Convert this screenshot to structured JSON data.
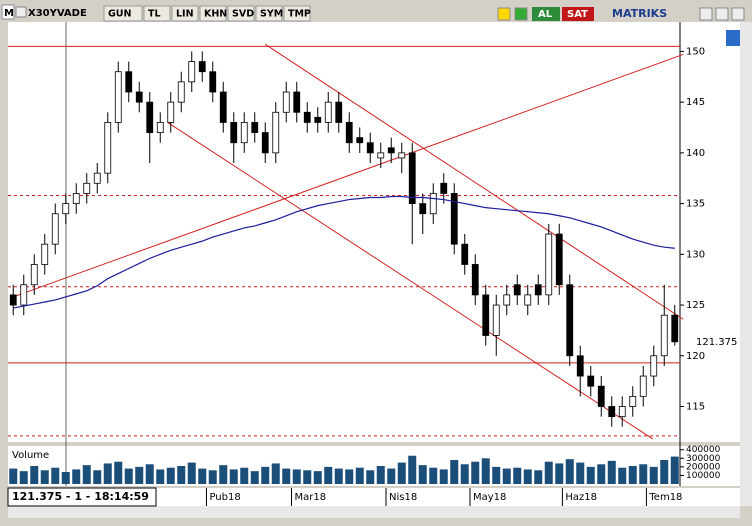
{
  "toolbar": {
    "symbol": "X30YVADE",
    "buttons": [
      "GUN",
      "TL",
      "LIN",
      "KHN",
      "SVD",
      "SYM",
      "TMP"
    ],
    "buy": "AL",
    "sell": "SAT",
    "brand": "MATRIKS",
    "logo": "M"
  },
  "status": "121.375 - 1 - 18:14:59",
  "chart_data": {
    "type": "candlestick",
    "categories": [
      null,
      null,
      null,
      null,
      null,
      null,
      null,
      null,
      null,
      null,
      null,
      null,
      null,
      null,
      null,
      null,
      null,
      null,
      null,
      null,
      null,
      null,
      null,
      null,
      null,
      null,
      null,
      null,
      null,
      null,
      null,
      null,
      null,
      null,
      null,
      null,
      null,
      null,
      null,
      null,
      null,
      null,
      null,
      null,
      null,
      null,
      null,
      null,
      null,
      null,
      null,
      null,
      null,
      null,
      null,
      null,
      null,
      null,
      null,
      null,
      null,
      null,
      null,
      null
    ],
    "open": [
      126,
      125,
      127,
      129,
      131,
      134,
      135,
      136,
      137,
      138,
      143,
      148,
      146,
      145,
      142,
      143,
      145,
      147,
      149,
      148,
      146,
      143,
      141,
      143,
      142,
      140,
      144,
      146,
      144,
      143.5,
      143,
      145,
      143,
      141.5,
      141,
      139.5,
      140.5,
      139.5,
      140,
      135,
      134,
      137,
      136,
      131,
      129,
      126,
      122,
      125,
      127,
      125,
      127,
      126,
      132,
      127,
      120,
      118,
      117,
      115,
      114,
      115,
      116,
      118,
      120,
      124
    ],
    "high": [
      127,
      128,
      130,
      132,
      135,
      136,
      137,
      138,
      139,
      144,
      149,
      149,
      147,
      146,
      144,
      146,
      148,
      150,
      150,
      149,
      147,
      144,
      144,
      144,
      143,
      145,
      147,
      147,
      145,
      144.5,
      146,
      146,
      144,
      142.5,
      142,
      141,
      141.5,
      141,
      141,
      136,
      137,
      138,
      137,
      132,
      130,
      127,
      126,
      127,
      128,
      127,
      128,
      133,
      133,
      128,
      121,
      119,
      118,
      116,
      116,
      117,
      119,
      121,
      127,
      125
    ],
    "low": [
      124,
      124,
      126,
      128,
      130,
      133,
      134,
      135,
      136,
      137,
      142,
      145,
      144,
      139,
      141,
      142,
      144,
      146,
      147,
      145,
      142,
      139,
      140,
      141,
      139,
      139,
      143,
      143,
      142,
      142,
      142,
      142,
      140,
      140,
      139,
      138.5,
      139,
      138,
      131,
      132,
      133,
      135,
      130,
      128,
      125,
      121,
      120,
      124,
      125,
      124,
      125,
      125,
      126,
      119,
      116,
      116,
      114,
      113,
      113,
      114,
      115,
      117,
      119,
      121
    ],
    "close": [
      125,
      127,
      129,
      131,
      134,
      135,
      136,
      137,
      138,
      143,
      148,
      146,
      145,
      142,
      143,
      145,
      147,
      149,
      148,
      146,
      143,
      141,
      143,
      142,
      140,
      144,
      146,
      144,
      143,
      143,
      145,
      143,
      141,
      141,
      140,
      140,
      140,
      140,
      135,
      134,
      136,
      136,
      131,
      129,
      126,
      122,
      125,
      126,
      126,
      126,
      126,
      132,
      127,
      120,
      118,
      117,
      115,
      114,
      115,
      116,
      118,
      120,
      124,
      121.375
    ],
    "volume": [
      180000,
      150000,
      210000,
      160000,
      190000,
      140000,
      170000,
      220000,
      160000,
      240000,
      260000,
      180000,
      200000,
      230000,
      170000,
      190000,
      210000,
      250000,
      180000,
      160000,
      220000,
      170000,
      190000,
      150000,
      200000,
      240000,
      180000,
      170000,
      160000,
      150000,
      200000,
      180000,
      170000,
      190000,
      160000,
      210000,
      180000,
      250000,
      330000,
      220000,
      190000,
      170000,
      280000,
      230000,
      260000,
      300000,
      200000,
      180000,
      190000,
      170000,
      160000,
      260000,
      240000,
      290000,
      250000,
      200000,
      230000,
      270000,
      190000,
      210000,
      230000,
      200000,
      280000,
      320000
    ],
    "ma": [
      124.7,
      124.9,
      125.1,
      125.3,
      125.5,
      125.8,
      126.1,
      126.4,
      126.9,
      127.6,
      128.1,
      128.6,
      129.1,
      129.6,
      130,
      130.4,
      130.7,
      131,
      131.3,
      131.7,
      132,
      132.3,
      132.6,
      132.8,
      133.1,
      133.4,
      133.8,
      134.2,
      134.5,
      134.8,
      135,
      135.2,
      135.4,
      135.5,
      135.6,
      135.6,
      135.7,
      135.7,
      135.6,
      135.6,
      135.5,
      135.4,
      135.2,
      135,
      134.8,
      134.6,
      134.5,
      134.4,
      134.3,
      134.2,
      134.1,
      134,
      133.8,
      133.6,
      133.3,
      133,
      132.7,
      132.3,
      131.9,
      131.5,
      131.2,
      130.9,
      130.7,
      130.6
    ],
    "ma_color": "#1c1c9c",
    "up_color": "#ffffff",
    "down_color": "#000000",
    "line_color": "#d42020",
    "volume_color": "#1b4f7a",
    "hlines": [
      {
        "value": 150.5,
        "style": "solid"
      },
      {
        "value": 135.8,
        "style": "dashed"
      },
      {
        "value": 126.8,
        "style": "dashed"
      },
      {
        "value": 119.3,
        "style": "solid"
      },
      {
        "value": 112.1,
        "style": "dashed"
      }
    ],
    "trendlines": [
      {
        "x": [
          0,
          63.8
        ],
        "y": [
          125.8,
          149.7
        ]
      },
      {
        "x": [
          24,
          63.8
        ],
        "y": [
          150.7,
          123.6
        ]
      },
      {
        "x": [
          14.7,
          60.9
        ],
        "y": [
          143,
          111.8
        ]
      }
    ],
    "ylim": [
      111.5,
      152.9
    ],
    "yticks": [
      115,
      120,
      125,
      130,
      135,
      140,
      145,
      150
    ],
    "xlim": [
      -0.5,
      63.5
    ],
    "xticks": [
      {
        "value": 18.4,
        "label": "Pub18"
      },
      {
        "value": 26.5,
        "label": "Mar18"
      },
      {
        "value": 35.5,
        "label": "Nis18"
      },
      {
        "value": 43.5,
        "label": "May18"
      },
      {
        "value": 52.3,
        "label": "Haz18"
      },
      {
        "value": 60.3,
        "label": "Tem18"
      }
    ],
    "volume_label": "Volume",
    "volume_ylim": [
      0,
      420000
    ],
    "volume_yticks": [
      100000,
      200000,
      300000,
      400000
    ]
  }
}
